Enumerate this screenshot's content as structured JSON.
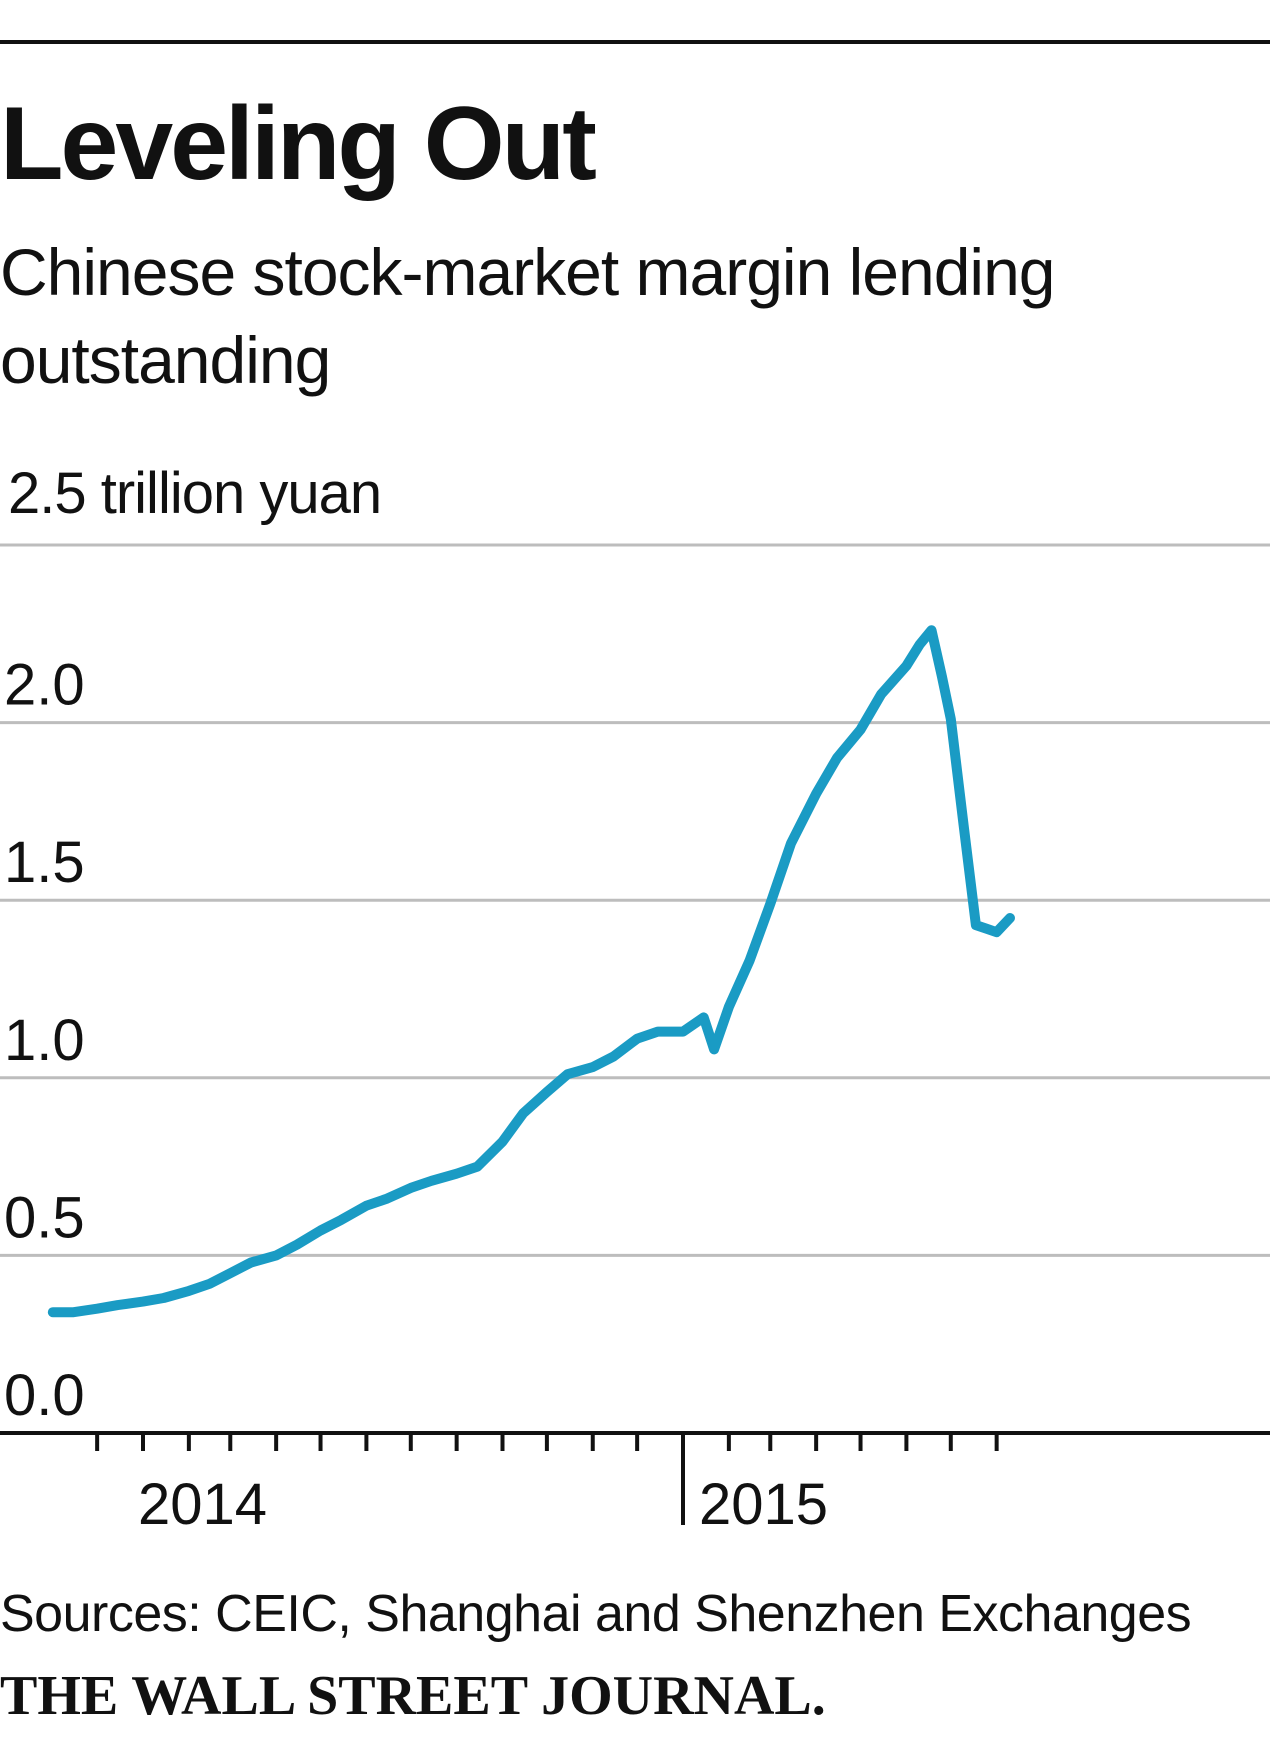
{
  "chart_data": {
    "type": "line",
    "title": "Leveling Out",
    "subtitle": "Chinese stock-market margin lending outstanding",
    "y_unit_label": "2.5 trillion yuan",
    "ylim": [
      0,
      2.5
    ],
    "y_ticks": [
      "0.0",
      "0.5",
      "1.0",
      "1.5",
      "2.0"
    ],
    "x_tick_labels": [
      "2014",
      "2015"
    ],
    "grid": "horizontal",
    "line_color": "#1a9bc4",
    "series": [
      {
        "x": [
          "2013-11-01",
          "2013-11-15",
          "2013-12-01",
          "2013-12-15",
          "2014-01-01",
          "2014-01-15",
          "2014-02-01",
          "2014-02-15",
          "2014-03-01",
          "2014-03-15",
          "2014-04-01",
          "2014-04-15",
          "2014-05-01",
          "2014-05-15",
          "2014-06-01",
          "2014-06-15",
          "2014-07-01",
          "2014-07-15",
          "2014-08-01",
          "2014-08-15",
          "2014-09-01",
          "2014-09-15",
          "2014-10-01",
          "2014-10-15",
          "2014-11-01",
          "2014-11-15",
          "2014-12-01",
          "2014-12-15",
          "2015-01-01",
          "2015-01-15",
          "2015-01-22",
          "2015-02-01",
          "2015-02-15",
          "2015-03-01",
          "2015-03-15",
          "2015-04-01",
          "2015-04-15",
          "2015-05-01",
          "2015-05-15",
          "2015-06-01",
          "2015-06-10",
          "2015-06-18",
          "2015-06-25",
          "2015-07-01",
          "2015-07-10",
          "2015-07-18",
          "2015-07-25",
          "2015-08-01",
          "2015-08-10"
        ],
        "values": [
          0.34,
          0.34,
          0.35,
          0.36,
          0.37,
          0.38,
          0.4,
          0.42,
          0.45,
          0.48,
          0.5,
          0.53,
          0.57,
          0.6,
          0.64,
          0.66,
          0.69,
          0.71,
          0.73,
          0.75,
          0.82,
          0.9,
          0.96,
          1.01,
          1.03,
          1.06,
          1.11,
          1.13,
          1.13,
          1.17,
          1.08,
          1.2,
          1.33,
          1.49,
          1.66,
          1.8,
          1.9,
          1.98,
          2.08,
          2.16,
          2.22,
          2.26,
          2.13,
          2.01,
          1.7,
          1.43,
          1.42,
          1.41,
          1.45
        ]
      }
    ]
  },
  "source_text": "Sources: CEIC, Shanghai and Shenzhen Exchanges",
  "publisher": "THE WALL STREET JOURNAL."
}
